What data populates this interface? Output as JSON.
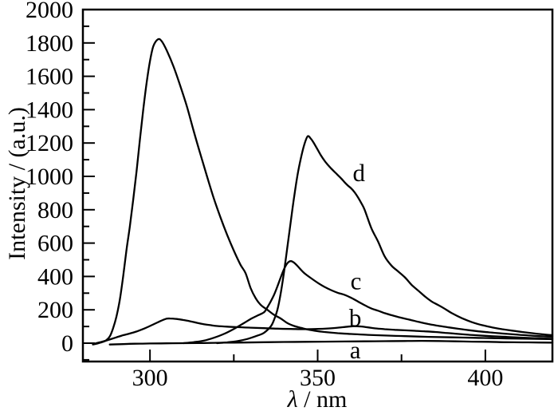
{
  "chart_data": {
    "type": "line",
    "title": "",
    "xlabel": "λ / nm",
    "xlabel_lambda": "λ",
    "xlabel_rest": " / nm",
    "ylabel": "Intensity / (a.u.)",
    "xlim": [
      280,
      420
    ],
    "ylim": [
      -110,
      2000
    ],
    "grid": false,
    "x_major_ticks": [
      300,
      350,
      400
    ],
    "x_minor_ticks": [
      325,
      375
    ],
    "y_major_ticks": [
      0,
      200,
      400,
      600,
      800,
      1000,
      1200,
      1400,
      1600,
      1800,
      2000
    ],
    "y_minor_ticks": [
      -100,
      100,
      300,
      500,
      700,
      900,
      1100,
      1300,
      1500,
      1700,
      1900
    ],
    "line_color": "#000000",
    "series": [
      {
        "name": "curve-unlabeled",
        "label": "",
        "label_at": null,
        "points": [
          [
            283,
            -8
          ],
          [
            284,
            -4
          ],
          [
            285,
            2
          ],
          [
            286,
            8
          ],
          [
            287,
            18
          ],
          [
            288,
            40
          ],
          [
            289,
            90
          ],
          [
            290,
            160
          ],
          [
            291,
            260
          ],
          [
            292,
            400
          ],
          [
            293,
            560
          ],
          [
            294,
            700
          ],
          [
            295,
            860
          ],
          [
            296,
            1030
          ],
          [
            297,
            1220
          ],
          [
            298,
            1400
          ],
          [
            299,
            1560
          ],
          [
            300,
            1690
          ],
          [
            301,
            1780
          ],
          [
            302.4,
            1822
          ],
          [
            303.5,
            1810
          ],
          [
            305,
            1755
          ],
          [
            307,
            1660
          ],
          [
            309,
            1545
          ],
          [
            311,
            1420
          ],
          [
            313,
            1275
          ],
          [
            315,
            1135
          ],
          [
            317,
            1000
          ],
          [
            319,
            870
          ],
          [
            321,
            755
          ],
          [
            323,
            650
          ],
          [
            325,
            555
          ],
          [
            327,
            470
          ],
          [
            328.5,
            420
          ],
          [
            330,
            330
          ],
          [
            331.5,
            270
          ],
          [
            333,
            230
          ],
          [
            335,
            200
          ],
          [
            337,
            170
          ],
          [
            339,
            148
          ],
          [
            341,
            120
          ],
          [
            343,
            103
          ],
          [
            345,
            92
          ],
          [
            347,
            82
          ],
          [
            350,
            72
          ],
          [
            353,
            65
          ],
          [
            356,
            60
          ],
          [
            360,
            55
          ],
          [
            365,
            50
          ],
          [
            370,
            46
          ],
          [
            376,
            42
          ],
          [
            383,
            38
          ],
          [
            390,
            35
          ],
          [
            397,
            32
          ],
          [
            404,
            29
          ],
          [
            411,
            27
          ],
          [
            420,
            24
          ]
        ]
      },
      {
        "name": "curve-a",
        "label": "a",
        "label_at": [
          361.2,
          -42
        ],
        "points": [
          [
            288,
            -8
          ],
          [
            291,
            -6
          ],
          [
            294,
            -4
          ],
          [
            297,
            -3
          ],
          [
            300,
            -2
          ],
          [
            305,
            -1
          ],
          [
            310,
            0
          ],
          [
            316,
            1
          ],
          [
            322,
            3
          ],
          [
            328,
            4
          ],
          [
            334,
            6
          ],
          [
            340,
            7
          ],
          [
            346,
            8
          ],
          [
            352,
            9
          ],
          [
            358,
            10
          ],
          [
            364,
            11
          ],
          [
            370,
            12
          ],
          [
            376,
            13
          ],
          [
            381,
            14
          ],
          [
            386,
            13
          ],
          [
            391,
            11
          ],
          [
            396,
            9
          ],
          [
            401,
            8
          ],
          [
            406,
            6
          ],
          [
            411,
            5
          ],
          [
            416,
            4
          ],
          [
            420,
            3
          ]
        ]
      },
      {
        "name": "curve-b",
        "label": "b",
        "label_at": [
          361.2,
          150
        ],
        "points": [
          [
            283,
            -6
          ],
          [
            284,
            0
          ],
          [
            286,
            10
          ],
          [
            288,
            22
          ],
          [
            290,
            35
          ],
          [
            292,
            48
          ],
          [
            294,
            58
          ],
          [
            296,
            70
          ],
          [
            298,
            85
          ],
          [
            300,
            103
          ],
          [
            302,
            122
          ],
          [
            304,
            140
          ],
          [
            305,
            147
          ],
          [
            306,
            148
          ],
          [
            308,
            145
          ],
          [
            310,
            139
          ],
          [
            312,
            131
          ],
          [
            314,
            122
          ],
          [
            316,
            114
          ],
          [
            318,
            108
          ],
          [
            320,
            103
          ],
          [
            323,
            99
          ],
          [
            326,
            96
          ],
          [
            330,
            93
          ],
          [
            334,
            90
          ],
          [
            338,
            87
          ],
          [
            342,
            85
          ],
          [
            346,
            84
          ],
          [
            350,
            85
          ],
          [
            353,
            88
          ],
          [
            356,
            93
          ],
          [
            359,
            99
          ],
          [
            361,
            102
          ],
          [
            363,
            100
          ],
          [
            365,
            95
          ],
          [
            367,
            89
          ],
          [
            370,
            84
          ],
          [
            373,
            80
          ],
          [
            376,
            77
          ],
          [
            379,
            74
          ],
          [
            382,
            71
          ],
          [
            385,
            67
          ],
          [
            388,
            62
          ],
          [
            391,
            57
          ],
          [
            394,
            52
          ],
          [
            397,
            48
          ],
          [
            400,
            44
          ],
          [
            404,
            40
          ],
          [
            408,
            36
          ],
          [
            412,
            32
          ],
          [
            416,
            29
          ],
          [
            420,
            27
          ]
        ]
      },
      {
        "name": "curve-c",
        "label": "c",
        "label_at": [
          361.4,
          370
        ],
        "points": [
          [
            310,
            0
          ],
          [
            313,
            6
          ],
          [
            316,
            15
          ],
          [
            319,
            32
          ],
          [
            322,
            55
          ],
          [
            325,
            85
          ],
          [
            328,
            120
          ],
          [
            330,
            145
          ],
          [
            332,
            165
          ],
          [
            334,
            185
          ],
          [
            335,
            215
          ],
          [
            336,
            250
          ],
          [
            337,
            290
          ],
          [
            338,
            340
          ],
          [
            339,
            395
          ],
          [
            340,
            445
          ],
          [
            341,
            480
          ],
          [
            342,
            492
          ],
          [
            343,
            482
          ],
          [
            344,
            462
          ],
          [
            345,
            440
          ],
          [
            346,
            420
          ],
          [
            348,
            390
          ],
          [
            350,
            362
          ],
          [
            352,
            338
          ],
          [
            354,
            318
          ],
          [
            356,
            302
          ],
          [
            358,
            290
          ],
          [
            360,
            272
          ],
          [
            362,
            250
          ],
          [
            364,
            228
          ],
          [
            366,
            208
          ],
          [
            368,
            195
          ],
          [
            370,
            180
          ],
          [
            372,
            168
          ],
          [
            374,
            157
          ],
          [
            376,
            147
          ],
          [
            378,
            138
          ],
          [
            380,
            128
          ],
          [
            383,
            115
          ],
          [
            386,
            104
          ],
          [
            389,
            95
          ],
          [
            392,
            86
          ],
          [
            395,
            78
          ],
          [
            398,
            71
          ],
          [
            401,
            65
          ],
          [
            405,
            58
          ],
          [
            409,
            52
          ],
          [
            413,
            46
          ],
          [
            416,
            42
          ],
          [
            420,
            39
          ]
        ]
      },
      {
        "name": "curve-d",
        "label": "d",
        "label_at": [
          362.3,
          1020
        ],
        "points": [
          [
            320,
            0
          ],
          [
            323,
            5
          ],
          [
            326,
            12
          ],
          [
            329,
            25
          ],
          [
            332,
            45
          ],
          [
            334,
            62
          ],
          [
            336,
            100
          ],
          [
            337,
            140
          ],
          [
            338,
            200
          ],
          [
            339,
            300
          ],
          [
            340,
            430
          ],
          [
            341,
            580
          ],
          [
            342,
            730
          ],
          [
            343,
            880
          ],
          [
            344,
            1010
          ],
          [
            345,
            1110
          ],
          [
            346,
            1190
          ],
          [
            347,
            1240
          ],
          [
            348,
            1225
          ],
          [
            349,
            1195
          ],
          [
            350,
            1160
          ],
          [
            351,
            1125
          ],
          [
            352,
            1095
          ],
          [
            353,
            1070
          ],
          [
            354,
            1048
          ],
          [
            355,
            1028
          ],
          [
            356,
            1008
          ],
          [
            357,
            988
          ],
          [
            358,
            965
          ],
          [
            359,
            945
          ],
          [
            360,
            928
          ],
          [
            361,
            905
          ],
          [
            362,
            875
          ],
          [
            363,
            840
          ],
          [
            364,
            800
          ],
          [
            366,
            690
          ],
          [
            368,
            610
          ],
          [
            370,
            520
          ],
          [
            372,
            465
          ],
          [
            374,
            430
          ],
          [
            376,
            395
          ],
          [
            378,
            350
          ],
          [
            380,
            315
          ],
          [
            382,
            280
          ],
          [
            384,
            250
          ],
          [
            386,
            228
          ],
          [
            388,
            205
          ],
          [
            390,
            180
          ],
          [
            393,
            150
          ],
          [
            396,
            126
          ],
          [
            399,
            108
          ],
          [
            402,
            95
          ],
          [
            405,
            84
          ],
          [
            408,
            75
          ],
          [
            411,
            67
          ],
          [
            414,
            60
          ],
          [
            417,
            53
          ],
          [
            420,
            48
          ]
        ]
      }
    ]
  }
}
